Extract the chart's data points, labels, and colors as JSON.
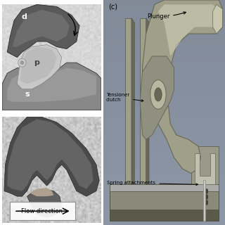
{
  "bg_color": "#ffffff",
  "panel_c_bg": "#b0bfcf",
  "label_c": "(c)",
  "label_plunger": "Plunger",
  "label_tensioner": "Tensioner\nclutch",
  "label_spring": "Spring attachments",
  "label_d": "d",
  "label_p": "p",
  "label_s": "s",
  "label_flow": "Flow direction",
  "cad_color": "#a0a08a",
  "cad_light": "#c8c8b0",
  "cad_dark": "#686858",
  "cad_shadow": "#505040",
  "top_left_border": "#cccccc",
  "bottom_left_border": "#cccccc"
}
